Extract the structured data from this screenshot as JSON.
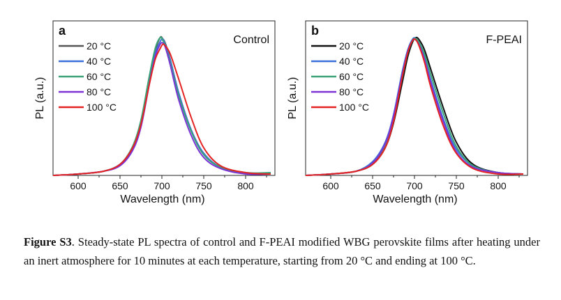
{
  "chart_data": [
    {
      "type": "line",
      "panel_label": "a",
      "panel_title": "Control",
      "xlabel": "Wavelength (nm)",
      "ylabel": "PL (a.u.)",
      "xlim": [
        570,
        835
      ],
      "ylim": [
        0,
        1.12
      ],
      "xticks": [
        600,
        650,
        700,
        750,
        800
      ],
      "legend_position": "top-left",
      "series": [
        {
          "name": "20 °C",
          "color": "#555555",
          "x": [
            570,
            600,
            630,
            650,
            665,
            675,
            685,
            692,
            698,
            701,
            704,
            710,
            720,
            735,
            750,
            770,
            800,
            830
          ],
          "y": [
            0.0,
            0.01,
            0.03,
            0.08,
            0.2,
            0.38,
            0.7,
            0.9,
            1.0,
            0.99,
            0.96,
            0.84,
            0.6,
            0.33,
            0.16,
            0.06,
            0.02,
            0.01
          ]
        },
        {
          "name": "40 °C",
          "color": "#3a6fd8",
          "x": [
            570,
            600,
            630,
            650,
            665,
            675,
            685,
            692,
            698,
            701,
            704,
            710,
            720,
            735,
            750,
            770,
            800,
            830
          ],
          "y": [
            0.0,
            0.01,
            0.03,
            0.08,
            0.19,
            0.36,
            0.67,
            0.88,
            0.97,
            0.99,
            0.95,
            0.84,
            0.6,
            0.33,
            0.16,
            0.06,
            0.02,
            0.01
          ]
        },
        {
          "name": "60 °C",
          "color": "#3aa377",
          "x": [
            570,
            600,
            630,
            650,
            665,
            675,
            685,
            692,
            698,
            701,
            704,
            710,
            720,
            735,
            750,
            770,
            800,
            830
          ],
          "y": [
            0.0,
            0.01,
            0.03,
            0.08,
            0.21,
            0.4,
            0.72,
            0.92,
            1.0,
            0.98,
            0.94,
            0.82,
            0.58,
            0.32,
            0.15,
            0.06,
            0.02,
            0.02
          ]
        },
        {
          "name": "80 °C",
          "color": "#7b33d6",
          "x": [
            570,
            600,
            630,
            650,
            665,
            675,
            685,
            692,
            698,
            701,
            704,
            710,
            720,
            735,
            750,
            770,
            800,
            830
          ],
          "y": [
            0.0,
            0.01,
            0.03,
            0.07,
            0.18,
            0.35,
            0.66,
            0.86,
            0.95,
            0.96,
            0.93,
            0.8,
            0.55,
            0.29,
            0.13,
            0.05,
            0.01,
            0.01
          ]
        },
        {
          "name": "100 °C",
          "color": "#e52222",
          "x": [
            570,
            600,
            630,
            650,
            665,
            675,
            685,
            692,
            698,
            701,
            704,
            710,
            720,
            735,
            750,
            770,
            800,
            830
          ],
          "y": [
            0.0,
            0.01,
            0.03,
            0.08,
            0.2,
            0.37,
            0.66,
            0.84,
            0.92,
            0.95,
            0.94,
            0.88,
            0.7,
            0.42,
            0.2,
            0.07,
            0.02,
            0.01
          ]
        }
      ]
    },
    {
      "type": "line",
      "panel_label": "b",
      "panel_title": "F-PEAI",
      "xlabel": "Wavelength (nm)",
      "ylabel": "PL (a.u.)",
      "xlim": [
        570,
        835
      ],
      "ylim": [
        0,
        1.12
      ],
      "xticks": [
        600,
        650,
        700,
        750,
        800
      ],
      "legend_position": "top-left",
      "series": [
        {
          "name": "20 °C",
          "color": "#111111",
          "x": [
            570,
            600,
            630,
            650,
            665,
            675,
            685,
            692,
            698,
            702,
            706,
            712,
            720,
            735,
            750,
            770,
            800,
            830
          ],
          "y": [
            0.0,
            0.01,
            0.03,
            0.08,
            0.2,
            0.38,
            0.66,
            0.86,
            0.97,
            1.0,
            0.98,
            0.91,
            0.76,
            0.48,
            0.24,
            0.08,
            0.02,
            0.01
          ]
        },
        {
          "name": "40 °C",
          "color": "#3a6fd8",
          "x": [
            570,
            600,
            630,
            650,
            665,
            675,
            685,
            692,
            698,
            702,
            706,
            712,
            720,
            735,
            750,
            770,
            800,
            830
          ],
          "y": [
            0.0,
            0.01,
            0.03,
            0.1,
            0.24,
            0.44,
            0.74,
            0.91,
            0.99,
            0.99,
            0.95,
            0.85,
            0.68,
            0.4,
            0.19,
            0.07,
            0.02,
            0.01
          ]
        },
        {
          "name": "60 °C",
          "color": "#3aa377",
          "x": [
            570,
            600,
            630,
            650,
            665,
            675,
            685,
            692,
            698,
            702,
            706,
            712,
            720,
            735,
            750,
            770,
            800,
            830
          ],
          "y": [
            0.0,
            0.01,
            0.03,
            0.09,
            0.22,
            0.41,
            0.7,
            0.89,
            0.98,
            0.99,
            0.96,
            0.88,
            0.72,
            0.44,
            0.21,
            0.07,
            0.02,
            0.01
          ]
        },
        {
          "name": "80 °C",
          "color": "#7b33d6",
          "x": [
            570,
            600,
            630,
            650,
            665,
            675,
            685,
            692,
            698,
            702,
            706,
            712,
            720,
            735,
            750,
            770,
            800,
            830
          ],
          "y": [
            0.0,
            0.01,
            0.03,
            0.09,
            0.23,
            0.43,
            0.72,
            0.9,
            0.98,
            0.98,
            0.94,
            0.84,
            0.66,
            0.38,
            0.17,
            0.06,
            0.02,
            0.01
          ]
        },
        {
          "name": "100 °C",
          "color": "#e52222",
          "x": [
            570,
            600,
            630,
            650,
            665,
            675,
            685,
            692,
            698,
            702,
            706,
            712,
            720,
            735,
            750,
            770,
            800,
            830
          ],
          "y": [
            0.0,
            0.01,
            0.03,
            0.08,
            0.2,
            0.39,
            0.7,
            0.89,
            0.98,
            0.98,
            0.93,
            0.82,
            0.63,
            0.35,
            0.16,
            0.05,
            0.01,
            0.01
          ]
        }
      ]
    }
  ],
  "caption": {
    "label": "Figure S3",
    "text": ". Steady-state PL spectra of control and F-PEAI modified WBG perovskite films after heating under an inert atmosphere for 10 minutes at each temperature, starting from 20 °C and ending at 100 °C."
  }
}
